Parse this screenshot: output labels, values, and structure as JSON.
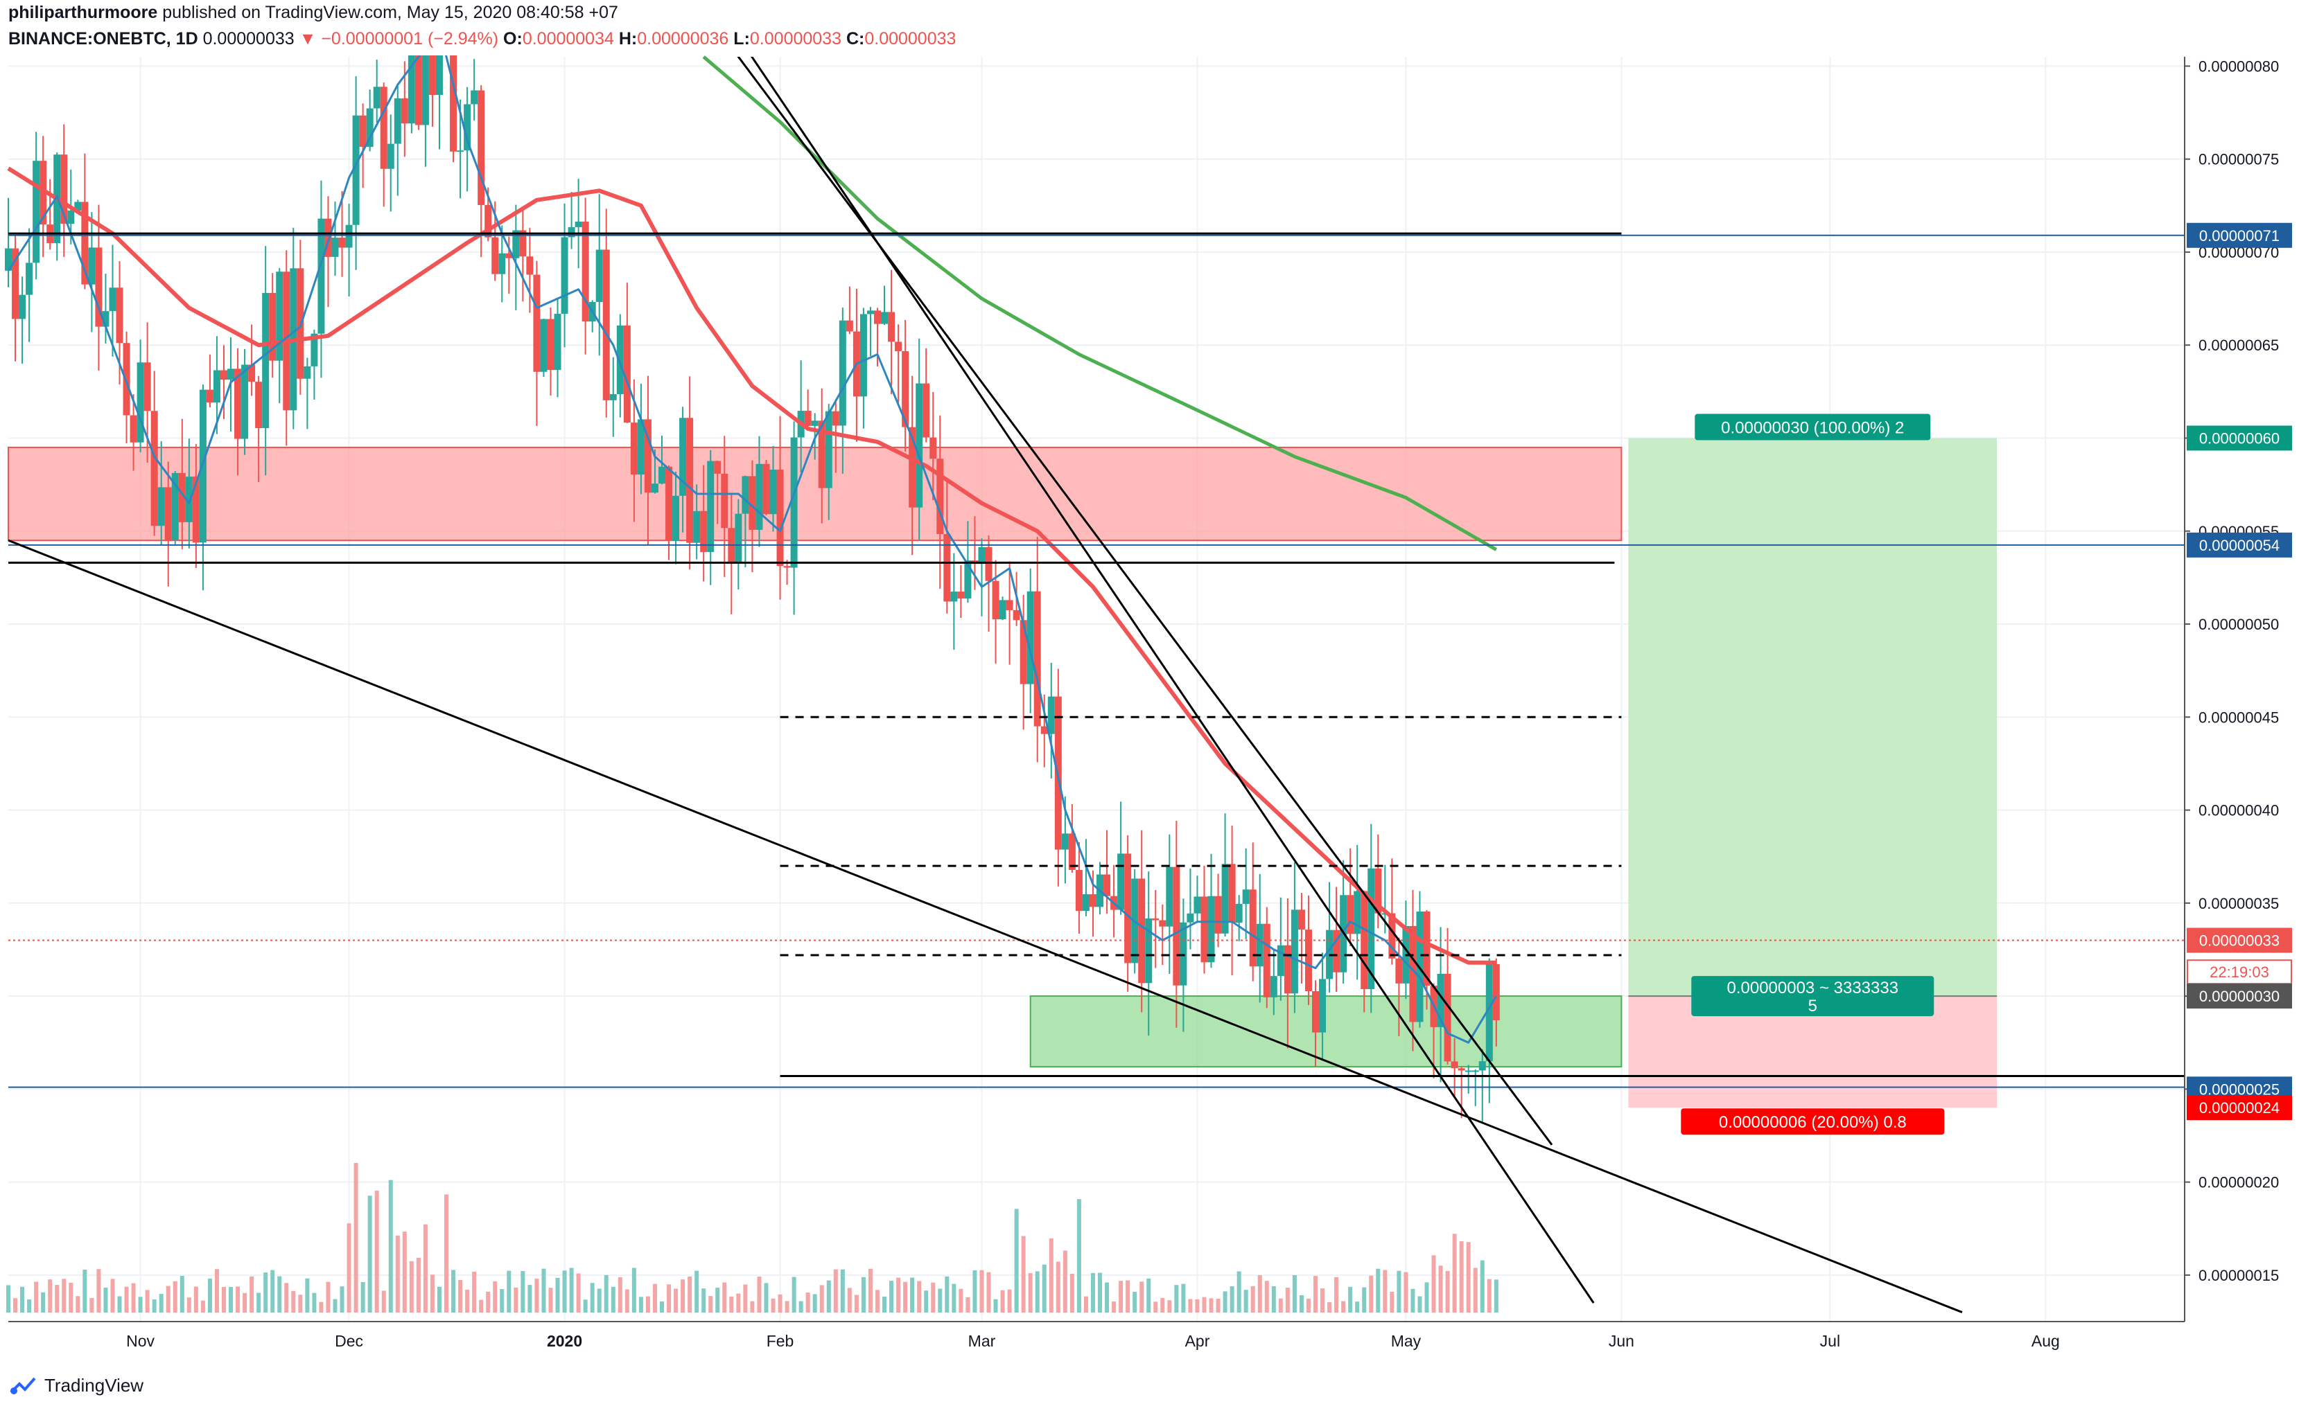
{
  "header": {
    "author": "philiparthurmoore",
    "published_text": "published on TradingView.com, May 15, 2020 08:40:58 +07",
    "symbol": "BINANCE:ONEBTC, 1D",
    "last": "0.00000033",
    "change": "▼ −0.00000001 (−2.94%)",
    "o_label": "O:",
    "o_value": "0.00000034",
    "h_label": "H:",
    "h_value": "0.00000036",
    "l_label": "L:",
    "l_value": "0.00000033",
    "c_label": "C:",
    "c_value": "0.00000033"
  },
  "branding": {
    "name": "TradingView"
  },
  "colors": {
    "up": "#26a69a",
    "down": "#ef5350",
    "ema_fast": "#2e86c1",
    "ema_mid": "#f05454",
    "ema_slow": "#4caf50",
    "resistance_zone": "#ff9e9e",
    "support_zone": "#8fd98f",
    "target_zone": "#c8ebc8",
    "stop_zone": "#ffcdd2",
    "hline_blue": "#1f5d9c"
  },
  "chart_data": {
    "type": "candlestick",
    "title": "BINANCE:ONEBTC, 1D",
    "xlabel": "",
    "ylabel": "",
    "ylim": [
      1.25e-07,
      8.05e-07
    ],
    "x_range": [
      "2019-10-13",
      "2020-08-21"
    ],
    "grid": true,
    "y_ticks": [
      "0.00000015",
      "0.00000020",
      "0.00000025",
      "0.00000030",
      "0.00000035",
      "0.00000040",
      "0.00000045",
      "0.00000050",
      "0.00000055",
      "0.00000060",
      "0.00000065",
      "0.00000070",
      "0.00000075",
      "0.00000080"
    ],
    "x_ticks": [
      {
        "label": "Nov",
        "date": "2019-11-01"
      },
      {
        "label": "Dec",
        "date": "2019-12-01"
      },
      {
        "label": "2020",
        "date": "2020-01-01"
      },
      {
        "label": "Feb",
        "date": "2020-02-01"
      },
      {
        "label": "Mar",
        "date": "2020-03-01"
      },
      {
        "label": "Apr",
        "date": "2020-04-01"
      },
      {
        "label": "May",
        "date": "2020-05-01"
      },
      {
        "label": "Jun",
        "date": "2020-06-01"
      },
      {
        "label": "Jul",
        "date": "2020-07-01"
      },
      {
        "label": "Aug",
        "date": "2020-08-01"
      }
    ],
    "price_labels": [
      {
        "text": "0.00000071",
        "value": 7.09e-07,
        "bg": "#1f5d9c",
        "fg": "#ffffff"
      },
      {
        "text": "0.00000060",
        "value": 6e-07,
        "bg": "#089981",
        "fg": "#ffffff"
      },
      {
        "text": "0.00000054",
        "value": 5.425e-07,
        "bg": "#1f5d9c",
        "fg": "#ffffff"
      },
      {
        "text": "0.00000033",
        "value": 3.3e-07,
        "bg": "#ef5350",
        "fg": "#ffffff"
      },
      {
        "text": "22:19:03",
        "value": 3.13e-07,
        "bg": "#ffffff",
        "fg": "#ef5350"
      },
      {
        "text": "0.00000030",
        "value": 3e-07,
        "bg": "#555555",
        "fg": "#ffffff"
      },
      {
        "text": "0.00000025",
        "value": 2.5e-07,
        "bg": "#1f5d9c",
        "fg": "#ffffff"
      },
      {
        "text": "0.00000024",
        "value": 2.4e-07,
        "bg": "#ff0000",
        "fg": "#ffffff"
      }
    ],
    "position": {
      "entry": 3e-07,
      "target": 6e-07,
      "stop": 2.4e-07,
      "start": "2020-06-02",
      "end": "2020-07-25",
      "target_label": "0.00000030 (100.00%) 2",
      "stop_label": "0.00000006 (20.00%) 0.8",
      "entry_label_1": "0.00000003 ~ 3333333",
      "entry_label_2": "5"
    },
    "zones": [
      {
        "name": "resistance",
        "from": "2019-10-13",
        "to": "2020-06-01",
        "low": 5.45e-07,
        "high": 5.95e-07
      },
      {
        "name": "support",
        "from": "2020-03-08",
        "to": "2020-06-01",
        "low": 2.62e-07,
        "high": 3e-07
      }
    ],
    "horizontal_lines": [
      {
        "value": 7.1e-07,
        "from": "2019-10-13",
        "to": "2020-06-01",
        "style": "solid",
        "color": "#000000"
      },
      {
        "value": 7.09e-07,
        "from": "2019-10-13",
        "to": "2020-08-21",
        "style": "solid",
        "color": "#1f5d9c"
      },
      {
        "value": 5.33e-07,
        "from": "2019-10-13",
        "to": "2020-05-31",
        "style": "solid",
        "color": "#000000"
      },
      {
        "value": 5.425e-07,
        "from": "2019-10-13",
        "to": "2020-08-21",
        "style": "solid",
        "color": "#1f5d9c"
      },
      {
        "value": 4.5e-07,
        "from": "2020-02-01",
        "to": "2020-06-01",
        "style": "dashed",
        "color": "#000000"
      },
      {
        "value": 3.7e-07,
        "from": "2020-02-01",
        "to": "2020-06-01",
        "style": "dashed",
        "color": "#000000"
      },
      {
        "value": 3.22e-07,
        "from": "2020-02-01",
        "to": "2020-06-01",
        "style": "dashed",
        "color": "#000000"
      },
      {
        "value": 2.57e-07,
        "from": "2020-02-01",
        "to": "2020-08-21",
        "style": "solid",
        "color": "#000000"
      },
      {
        "value": 2.51e-07,
        "from": "2019-10-13",
        "to": "2020-08-21",
        "style": "solid",
        "color": "#1f5d9c"
      },
      {
        "value": 3.3e-07,
        "from": "2019-10-13",
        "to": "2020-08-21",
        "style": "dotted",
        "color": "#ef5350"
      }
    ],
    "trendlines": [
      {
        "from": [
          "2019-10-13",
          5.45e-07
        ],
        "to": [
          "2020-07-20",
          1.3e-07
        ]
      },
      {
        "from": [
          "2020-01-15",
          8.6e-07
        ],
        "to": [
          "2020-05-22",
          2.2e-07
        ]
      },
      {
        "from": [
          "2020-01-18",
          8.6e-07
        ],
        "to": [
          "2020-05-28",
          1.35e-07
        ]
      }
    ],
    "ema_fast": [
      [
        "2019-10-13",
        6.9e-07
      ],
      [
        "2019-10-20",
        7.3e-07
      ],
      [
        "2019-10-27",
        6.6e-07
      ],
      [
        "2019-11-03",
        5.9e-07
      ],
      [
        "2019-11-08",
        5.65e-07
      ],
      [
        "2019-11-14",
        6.3e-07
      ],
      [
        "2019-11-24",
        6.6e-07
      ],
      [
        "2019-12-01",
        7.4e-07
      ],
      [
        "2019-12-08",
        7.9e-07
      ],
      [
        "2019-12-14",
        8.2e-07
      ],
      [
        "2019-12-18",
        7.6e-07
      ],
      [
        "2019-12-23",
        7.1e-07
      ],
      [
        "2019-12-28",
        6.7e-07
      ],
      [
        "2020-01-03",
        6.8e-07
      ],
      [
        "2020-01-08",
        6.5e-07
      ],
      [
        "2020-01-14",
        5.9e-07
      ],
      [
        "2020-01-20",
        5.7e-07
      ],
      [
        "2020-01-26",
        5.7e-07
      ],
      [
        "2020-02-01",
        5.5e-07
      ],
      [
        "2020-02-06",
        6e-07
      ],
      [
        "2020-02-12",
        6.4e-07
      ],
      [
        "2020-02-15",
        6.45e-07
      ],
      [
        "2020-02-20",
        6e-07
      ],
      [
        "2020-02-25",
        5.5e-07
      ],
      [
        "2020-03-01",
        5.2e-07
      ],
      [
        "2020-03-05",
        5.3e-07
      ],
      [
        "2020-03-09",
        4.7e-07
      ],
      [
        "2020-03-13",
        4e-07
      ],
      [
        "2020-03-17",
        3.6e-07
      ],
      [
        "2020-03-23",
        3.4e-07
      ],
      [
        "2020-03-27",
        3.3e-07
      ],
      [
        "2020-04-01",
        3.4e-07
      ],
      [
        "2020-04-06",
        3.4e-07
      ],
      [
        "2020-04-12",
        3.25e-07
      ],
      [
        "2020-04-18",
        3.15e-07
      ],
      [
        "2020-04-23",
        3.4e-07
      ],
      [
        "2020-04-28",
        3.3e-07
      ],
      [
        "2020-05-03",
        3.1e-07
      ],
      [
        "2020-05-07",
        2.8e-07
      ],
      [
        "2020-05-10",
        2.75e-07
      ],
      [
        "2020-05-14",
        3e-07
      ]
    ],
    "ema_mid": [
      [
        "2019-10-13",
        7.45e-07
      ],
      [
        "2019-10-28",
        7.1e-07
      ],
      [
        "2019-11-08",
        6.7e-07
      ],
      [
        "2019-11-18",
        6.5e-07
      ],
      [
        "2019-11-28",
        6.55e-07
      ],
      [
        "2019-12-08",
        6.8e-07
      ],
      [
        "2019-12-18",
        7.05e-07
      ],
      [
        "2019-12-28",
        7.28e-07
      ],
      [
        "2020-01-06",
        7.33e-07
      ],
      [
        "2020-01-12",
        7.25e-07
      ],
      [
        "2020-01-20",
        6.7e-07
      ],
      [
        "2020-01-28",
        6.28e-07
      ],
      [
        "2020-02-05",
        6.05e-07
      ],
      [
        "2020-02-15",
        5.98e-07
      ],
      [
        "2020-02-22",
        5.85e-07
      ],
      [
        "2020-03-01",
        5.65e-07
      ],
      [
        "2020-03-09",
        5.5e-07
      ],
      [
        "2020-03-17",
        5.2e-07
      ],
      [
        "2020-03-27",
        4.7e-07
      ],
      [
        "2020-04-05",
        4.25e-07
      ],
      [
        "2020-04-15",
        3.9e-07
      ],
      [
        "2020-04-25",
        3.55e-07
      ],
      [
        "2020-05-03",
        3.3e-07
      ],
      [
        "2020-05-10",
        3.18e-07
      ],
      [
        "2020-05-14",
        3.18e-07
      ]
    ],
    "ema_slow": [
      [
        "2020-01-21",
        8.05e-07
      ],
      [
        "2020-02-01",
        7.7e-07
      ],
      [
        "2020-02-15",
        7.18e-07
      ],
      [
        "2020-03-01",
        6.75e-07
      ],
      [
        "2020-03-15",
        6.45e-07
      ],
      [
        "2020-04-01",
        6.15e-07
      ],
      [
        "2020-04-15",
        5.9e-07
      ],
      [
        "2020-05-01",
        5.68e-07
      ],
      [
        "2020-05-14",
        5.4e-07
      ]
    ],
    "candles_ohlc_path": "generated"
  }
}
